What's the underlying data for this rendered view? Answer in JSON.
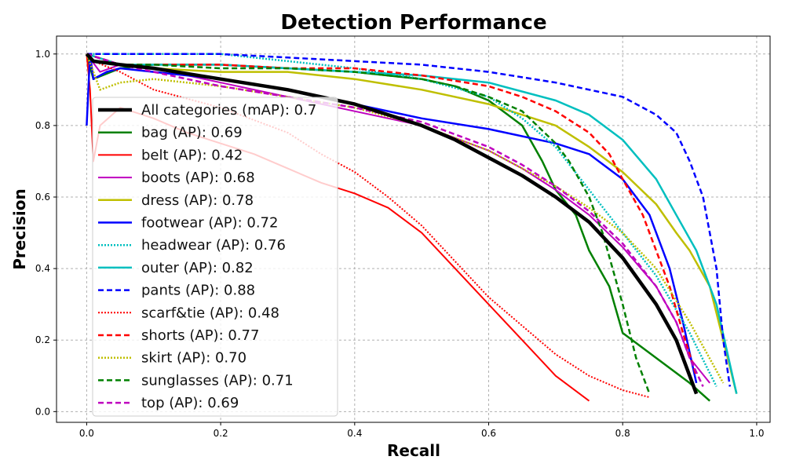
{
  "chart_data": {
    "type": "line",
    "title": "Detection Performance",
    "xlabel": "Recall",
    "ylabel": "Precision",
    "xlim": [
      -0.045,
      1.02
    ],
    "ylim": [
      -0.03,
      1.05
    ],
    "x_ticks": [
      0.0,
      0.2,
      0.4,
      0.6,
      0.8,
      1.0
    ],
    "x_tick_labels": [
      "0.0",
      "0.2",
      "0.4",
      "0.6",
      "0.8",
      "1.0"
    ],
    "y_ticks": [
      0.0,
      0.2,
      0.4,
      0.6,
      0.8,
      1.0
    ],
    "y_tick_labels": [
      "0.0",
      "0.2",
      "0.4",
      "0.6",
      "0.8",
      "1.0"
    ],
    "grid": true,
    "legend_position": "left",
    "series": [
      {
        "name": "All categories (mAP): 0.7",
        "color": "#000000",
        "style": "solid",
        "width": 4.5,
        "x": [
          0.0,
          0.01,
          0.05,
          0.1,
          0.2,
          0.3,
          0.4,
          0.5,
          0.55,
          0.6,
          0.65,
          0.7,
          0.75,
          0.8,
          0.85,
          0.88,
          0.9,
          0.91
        ],
        "y": [
          1.0,
          0.98,
          0.97,
          0.96,
          0.93,
          0.9,
          0.86,
          0.8,
          0.76,
          0.71,
          0.66,
          0.6,
          0.53,
          0.43,
          0.3,
          0.2,
          0.1,
          0.05
        ]
      },
      {
        "name": "bag (AP): 0.69",
        "color": "#008000",
        "style": "solid",
        "width": 2.5,
        "x": [
          0.0,
          0.01,
          0.05,
          0.1,
          0.2,
          0.3,
          0.4,
          0.5,
          0.55,
          0.6,
          0.65,
          0.68,
          0.7,
          0.73,
          0.75,
          0.78,
          0.8,
          0.85,
          0.9,
          0.93
        ],
        "y": [
          1.0,
          0.93,
          0.96,
          0.97,
          0.97,
          0.96,
          0.95,
          0.93,
          0.91,
          0.87,
          0.8,
          0.7,
          0.62,
          0.55,
          0.45,
          0.35,
          0.22,
          0.15,
          0.08,
          0.03
        ]
      },
      {
        "name": "belt (AP): 0.42",
        "color": "#ff0000",
        "style": "solid",
        "width": 2.0,
        "x": [
          0.0,
          0.005,
          0.01,
          0.02,
          0.05,
          0.1,
          0.15,
          0.2,
          0.25,
          0.3,
          0.35,
          0.4,
          0.45,
          0.5,
          0.55,
          0.6,
          0.65,
          0.7,
          0.75
        ],
        "y": [
          1.0,
          0.9,
          0.7,
          0.8,
          0.85,
          0.82,
          0.78,
          0.75,
          0.72,
          0.68,
          0.64,
          0.61,
          0.57,
          0.5,
          0.4,
          0.3,
          0.2,
          0.1,
          0.03
        ]
      },
      {
        "name": "boots (AP): 0.68",
        "color": "#bf00bf",
        "style": "solid",
        "width": 2.0,
        "x": [
          0.0,
          0.02,
          0.05,
          0.1,
          0.2,
          0.3,
          0.4,
          0.5,
          0.6,
          0.65,
          0.7,
          0.75,
          0.8,
          0.85,
          0.88,
          0.9,
          0.93
        ],
        "y": [
          1.0,
          0.95,
          0.97,
          0.96,
          0.92,
          0.88,
          0.84,
          0.8,
          0.73,
          0.68,
          0.62,
          0.55,
          0.46,
          0.35,
          0.25,
          0.15,
          0.08
        ]
      },
      {
        "name": "dress (AP): 0.78",
        "color": "#bfbf00",
        "style": "solid",
        "width": 2.5,
        "x": [
          0.0,
          0.05,
          0.1,
          0.2,
          0.3,
          0.4,
          0.5,
          0.6,
          0.7,
          0.75,
          0.8,
          0.85,
          0.88,
          0.9,
          0.93,
          0.95,
          0.97
        ],
        "y": [
          1.0,
          0.97,
          0.96,
          0.95,
          0.95,
          0.93,
          0.9,
          0.86,
          0.8,
          0.74,
          0.67,
          0.58,
          0.5,
          0.45,
          0.35,
          0.2,
          0.05
        ]
      },
      {
        "name": "footwear (AP): 0.72",
        "color": "#0000ff",
        "style": "solid",
        "width": 2.5,
        "x": [
          0.0,
          0.005,
          0.01,
          0.03,
          0.05,
          0.1,
          0.2,
          0.3,
          0.4,
          0.5,
          0.6,
          0.7,
          0.75,
          0.8,
          0.84,
          0.87,
          0.89,
          0.91
        ],
        "y": [
          0.8,
          1.0,
          0.93,
          0.95,
          0.96,
          0.95,
          0.93,
          0.9,
          0.86,
          0.82,
          0.79,
          0.75,
          0.72,
          0.65,
          0.55,
          0.4,
          0.25,
          0.08
        ]
      },
      {
        "name": "headwear (AP): 0.76",
        "color": "#00bfbf",
        "style": "dotted",
        "width": 2.5,
        "x": [
          0.0,
          0.05,
          0.1,
          0.2,
          0.3,
          0.4,
          0.5,
          0.6,
          0.65,
          0.7,
          0.75,
          0.8,
          0.85,
          0.9,
          0.94
        ],
        "y": [
          1.0,
          1.0,
          1.0,
          1.0,
          0.98,
          0.96,
          0.93,
          0.88,
          0.82,
          0.74,
          0.62,
          0.5,
          0.38,
          0.22,
          0.07
        ]
      },
      {
        "name": "outer (AP): 0.82",
        "color": "#00bfbf",
        "style": "solid",
        "width": 2.5,
        "x": [
          0.0,
          0.05,
          0.1,
          0.2,
          0.3,
          0.4,
          0.5,
          0.6,
          0.7,
          0.75,
          0.8,
          0.85,
          0.88,
          0.91,
          0.94,
          0.97
        ],
        "y": [
          1.0,
          0.97,
          0.97,
          0.97,
          0.96,
          0.95,
          0.94,
          0.92,
          0.87,
          0.83,
          0.76,
          0.65,
          0.55,
          0.45,
          0.3,
          0.05
        ]
      },
      {
        "name": "pants (AP): 0.88",
        "color": "#0000ff",
        "style": "dashed",
        "width": 2.5,
        "x": [
          0.0,
          0.05,
          0.1,
          0.2,
          0.3,
          0.4,
          0.5,
          0.6,
          0.7,
          0.8,
          0.85,
          0.88,
          0.9,
          0.92,
          0.94,
          0.95,
          0.96
        ],
        "y": [
          1.0,
          1.0,
          1.0,
          1.0,
          0.99,
          0.98,
          0.97,
          0.95,
          0.92,
          0.88,
          0.83,
          0.78,
          0.7,
          0.6,
          0.4,
          0.2,
          0.07
        ]
      },
      {
        "name": "scarf&tie (AP): 0.48",
        "color": "#ff0000",
        "style": "dotted",
        "width": 2.0,
        "x": [
          0.0,
          0.01,
          0.05,
          0.1,
          0.2,
          0.3,
          0.35,
          0.4,
          0.45,
          0.5,
          0.55,
          0.6,
          0.65,
          0.7,
          0.75,
          0.8,
          0.84
        ],
        "y": [
          1.0,
          0.98,
          0.95,
          0.9,
          0.85,
          0.78,
          0.72,
          0.67,
          0.6,
          0.52,
          0.42,
          0.32,
          0.24,
          0.16,
          0.1,
          0.06,
          0.04
        ]
      },
      {
        "name": "shorts (AP): 0.77",
        "color": "#ff0000",
        "style": "dashed",
        "width": 2.5,
        "x": [
          0.0,
          0.05,
          0.1,
          0.2,
          0.3,
          0.4,
          0.5,
          0.6,
          0.65,
          0.7,
          0.75,
          0.78,
          0.8,
          0.83,
          0.85,
          0.87,
          0.89,
          0.91
        ],
        "y": [
          1.0,
          0.97,
          0.97,
          0.97,
          0.96,
          0.96,
          0.94,
          0.91,
          0.88,
          0.84,
          0.78,
          0.72,
          0.65,
          0.55,
          0.45,
          0.35,
          0.22,
          0.1
        ]
      },
      {
        "name": "skirt (AP): 0.70",
        "color": "#bfbf00",
        "style": "dotted",
        "width": 2.5,
        "x": [
          0.0,
          0.02,
          0.05,
          0.1,
          0.2,
          0.3,
          0.4,
          0.5,
          0.6,
          0.7,
          0.75,
          0.8,
          0.85,
          0.9,
          0.95
        ],
        "y": [
          1.0,
          0.9,
          0.92,
          0.93,
          0.91,
          0.88,
          0.85,
          0.8,
          0.73,
          0.63,
          0.57,
          0.5,
          0.4,
          0.25,
          0.08
        ]
      },
      {
        "name": "sunglasses (AP): 0.71",
        "color": "#008000",
        "style": "dashed",
        "width": 2.5,
        "x": [
          0.0,
          0.05,
          0.1,
          0.2,
          0.3,
          0.4,
          0.5,
          0.55,
          0.6,
          0.65,
          0.7,
          0.72,
          0.75,
          0.77,
          0.8,
          0.82,
          0.84
        ],
        "y": [
          1.0,
          0.97,
          0.97,
          0.96,
          0.96,
          0.95,
          0.93,
          0.91,
          0.88,
          0.84,
          0.75,
          0.7,
          0.6,
          0.5,
          0.3,
          0.15,
          0.05
        ]
      },
      {
        "name": "top (AP): 0.69",
        "color": "#bf00bf",
        "style": "dashed",
        "width": 2.5,
        "x": [
          0.0,
          0.05,
          0.1,
          0.2,
          0.3,
          0.4,
          0.5,
          0.6,
          0.65,
          0.7,
          0.75,
          0.8,
          0.85,
          0.88,
          0.9,
          0.92
        ],
        "y": [
          1.0,
          0.97,
          0.95,
          0.91,
          0.88,
          0.85,
          0.81,
          0.74,
          0.69,
          0.63,
          0.56,
          0.47,
          0.35,
          0.25,
          0.15,
          0.07
        ]
      }
    ]
  }
}
